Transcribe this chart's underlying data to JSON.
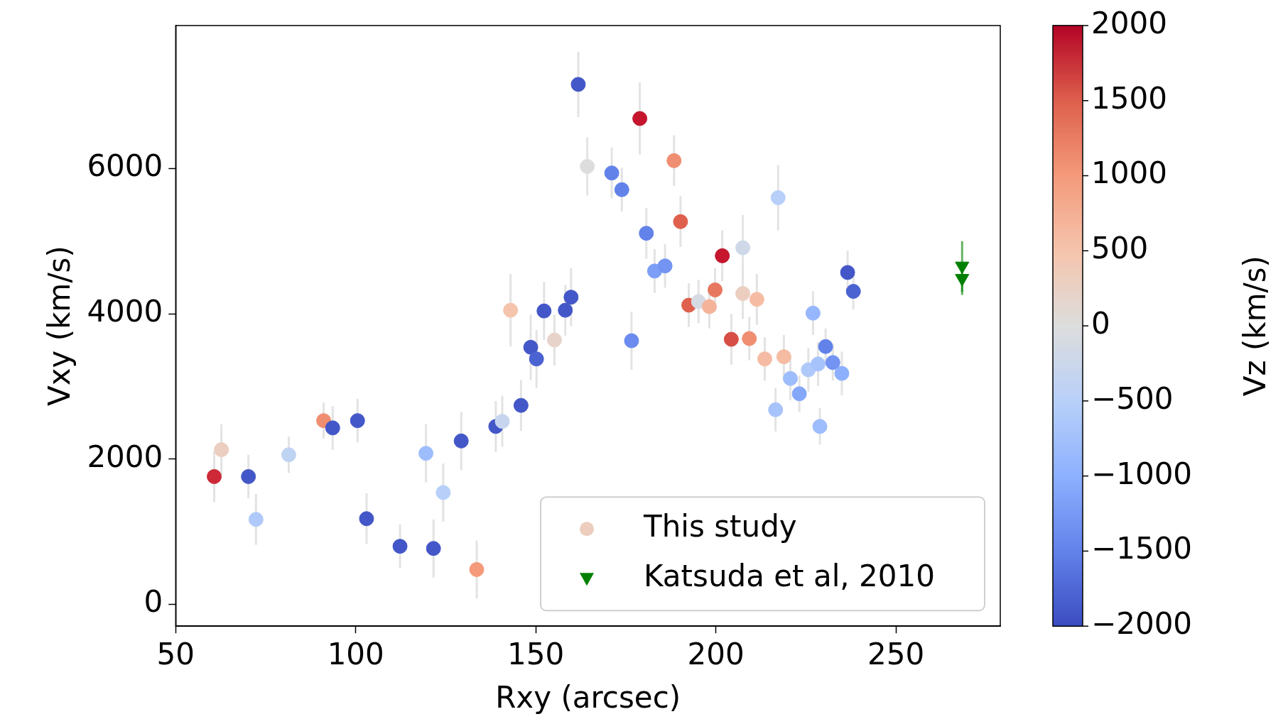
{
  "chart_data": {
    "type": "scatter",
    "xlabel": "Rxy (arcsec)",
    "ylabel": "Vxy (km/s)",
    "clabel": "Vz (km/s)",
    "xlim": [
      50,
      279
    ],
    "xticks": [
      50,
      100,
      150,
      200,
      250
    ],
    "ylim": [
      -300,
      7970
    ],
    "yticks": [
      0,
      2000,
      4000,
      6000
    ],
    "clim": [
      -2000,
      2000
    ],
    "cticks": [
      -2000,
      -1500,
      -1000,
      -500,
      0,
      500,
      1000,
      1500,
      2000
    ],
    "grid": false,
    "legend": "bottom right",
    "series": [
      {
        "name": "This study",
        "marker": "circle",
        "colors": [
          "#cd2936",
          "#ebcec0",
          "#4357c8",
          "#afcafa",
          "#bfd3f3",
          "#f08e72",
          "#4357c8",
          "#4357c8",
          "#4357c8",
          "#4357c8",
          "#9ebdfc",
          "#4357c8",
          "#b8d0f9",
          "#4357c8",
          "#f49a7b",
          "#4357c8",
          "#c7d5ee",
          "#f5c4ad",
          "#4357c8",
          "#4357c8",
          "#4b62d1",
          "#4357c8",
          "#e7d3ca",
          "#4357c8",
          "#4357c8",
          "#4357c8",
          "#dddddd",
          "#6282ea",
          "#6282ea",
          "#6b8bee",
          "#c5162e",
          "#6282ea",
          "#7c9ef6",
          "#7394f2",
          "#f08e72",
          "#de604d",
          "#de604d",
          "#d6dae3",
          "#f5b399",
          "#e7775f",
          "#c5162e",
          "#d64e45",
          "#ced8e8",
          "#ebcec0",
          "#f08e72",
          "#f5bca3",
          "#f5bca3",
          "#a7c3fb",
          "#b8d0f9",
          "#f5bca3",
          "#9ebdfc",
          "#84a7fa",
          "#afcafa",
          "#96b6fd",
          "#a7c3fb",
          "#9ebdfc",
          "#6282ea",
          "#7394f2",
          "#8db0fe",
          "#4357c8",
          "#4b62d1"
        ],
        "x": [
          60.7,
          62.7,
          70.2,
          72.3,
          81.4,
          91.1,
          93.6,
          100.5,
          103.0,
          112.3,
          119.5,
          121.6,
          124.3,
          129.3,
          133.6,
          138.9,
          140.7,
          143.0,
          145.9,
          148.6,
          150.2,
          152.3,
          155.2,
          158.2,
          159.8,
          161.8,
          164.3,
          171.1,
          173.9,
          176.6,
          178.9,
          180.7,
          183.0,
          185.9,
          188.4,
          190.2,
          192.5,
          195.2,
          198.2,
          199.8,
          201.8,
          204.3,
          207.5,
          207.5,
          209.3,
          211.4,
          213.6,
          216.6,
          217.3,
          218.9,
          220.7,
          223.2,
          225.7,
          227.0,
          228.4,
          228.9,
          230.5,
          232.5,
          235.0,
          236.6,
          238.2
        ],
        "values": [
          1760,
          2130,
          1760,
          1170,
          2060,
          2530,
          2430,
          2530,
          1180,
          800,
          2080,
          770,
          1540,
          2250,
          480,
          2450,
          2520,
          4050,
          2740,
          3540,
          3380,
          4040,
          3640,
          4050,
          4230,
          7160,
          6030,
          5940,
          5710,
          3630,
          6690,
          5110,
          4590,
          4660,
          6110,
          5270,
          4120,
          4170,
          4100,
          4330,
          4800,
          3650,
          4910,
          4280,
          3660,
          4200,
          3380,
          2680,
          5600,
          3410,
          3110,
          2900,
          3230,
          4010,
          3310,
          2450,
          3550,
          3330,
          3180,
          4570,
          4310
        ],
        "errors": [
          350,
          350,
          300,
          350,
          250,
          250,
          300,
          300,
          350,
          300,
          400,
          400,
          400,
          400,
          400,
          350,
          350,
          500,
          350,
          450,
          400,
          400,
          350,
          350,
          400,
          450,
          400,
          350,
          300,
          400,
          500,
          350,
          300,
          300,
          350,
          350,
          300,
          300,
          300,
          300,
          350,
          350,
          450,
          350,
          300,
          350,
          300,
          300,
          450,
          300,
          300,
          250,
          300,
          300,
          300,
          250,
          250,
          250,
          300,
          300,
          250
        ],
        "cvalues": [
          1800,
          300,
          -1900,
          -600,
          -400,
          1100,
          -1900,
          -1900,
          -1900,
          -1900,
          -800,
          -1900,
          -500,
          -1900,
          1000,
          -1900,
          -300,
          500,
          -1900,
          -1900,
          -1800,
          -1900,
          200,
          -1900,
          -1900,
          -1900,
          0,
          -1500,
          -1500,
          -1400,
          1900,
          -1500,
          -1200,
          -1300,
          1100,
          1500,
          1500,
          -100,
          700,
          1300,
          1900,
          1600,
          -200,
          300,
          1100,
          600,
          600,
          -700,
          -500,
          600,
          -800,
          -1100,
          -600,
          -900,
          -700,
          -800,
          -1500,
          -1300,
          -1000,
          -1900,
          -1800
        ]
      },
      {
        "name": "Katsuda et al, 2010",
        "color": "#008000",
        "marker": "triangle",
        "x": [
          268.4,
          268.4
        ],
        "values": [
          4660,
          4490
        ],
        "errors": [
          [
            4300,
            5000
          ],
          [
            4260,
            4700
          ]
        ]
      }
    ]
  }
}
